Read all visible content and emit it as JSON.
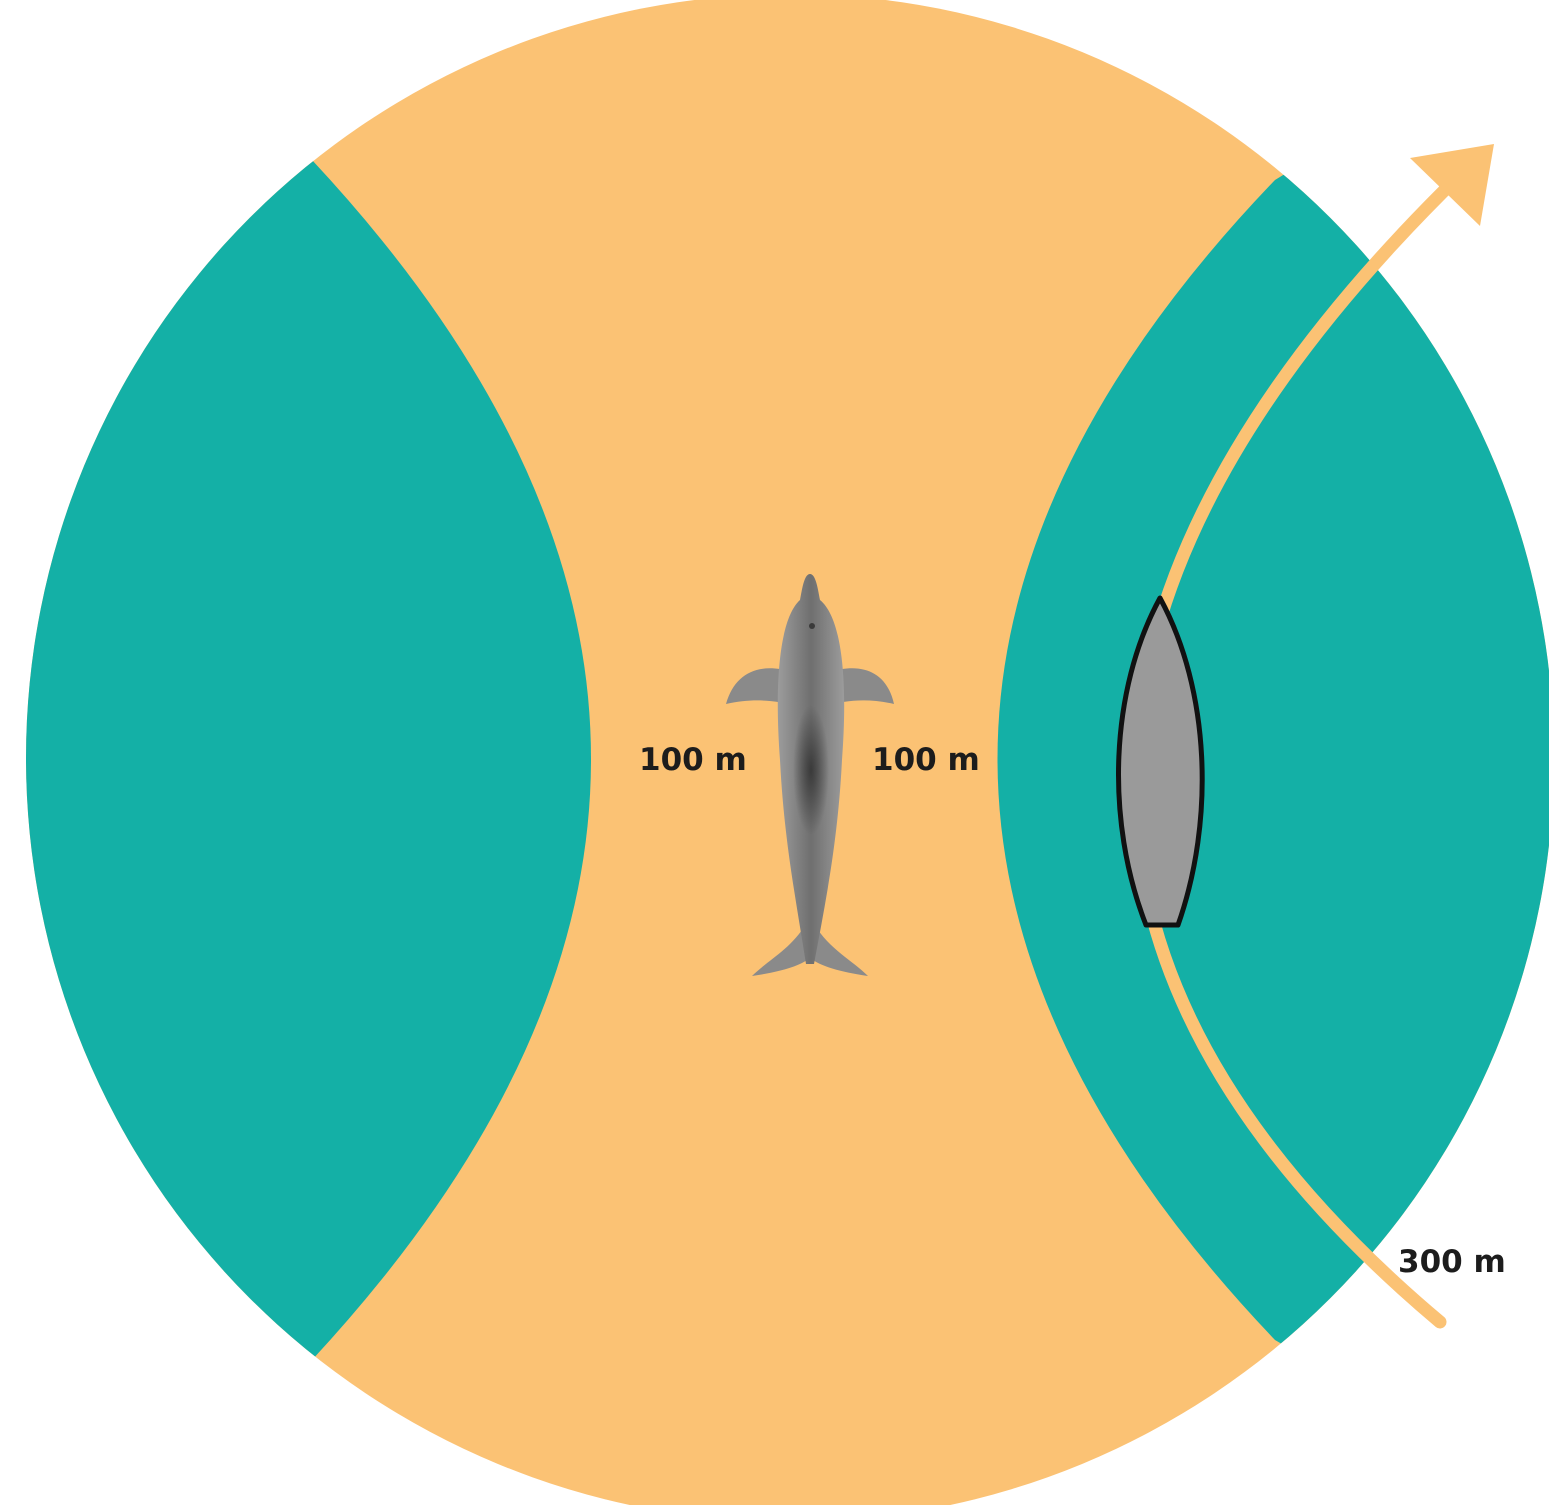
{
  "colors": {
    "background": "#ffffff",
    "safe_zone": "#fbc274",
    "approach_zone": "#14b0a6",
    "vessel_fill": "#9a9a9a",
    "vessel_outline": "#111111",
    "dolphin_body": "#808080",
    "dolphin_dark": "#3a3a3a",
    "label_text": "#1c1c1c"
  },
  "icons": {
    "animal": "dolphin-icon",
    "vessel": "boat-icon",
    "route": "arrow-path"
  },
  "labels": {
    "left_distance": "100 m",
    "right_distance": "100 m",
    "outer_distance": "300 m"
  }
}
